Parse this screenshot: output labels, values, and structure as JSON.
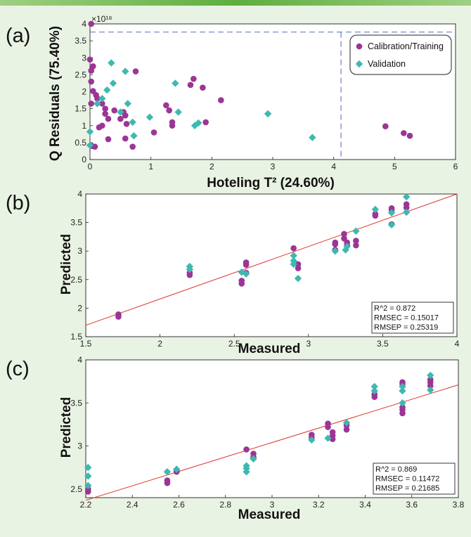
{
  "colors": {
    "calibration": "#9c3595",
    "validation": "#3eb9b0",
    "fit_line": "#e0342b",
    "dashed_limit": "#6e7fbf",
    "background": "#e9f3e4"
  },
  "chart_data": [
    {
      "id": "a",
      "type": "scatter",
      "panel_label": "(a)",
      "title": "",
      "xlabel": "Hoteling T² (24.60%)",
      "ylabel": "Q Residuals (75.40%)",
      "y_scale_label": "×10¹⁸",
      "xlim": [
        0,
        6
      ],
      "ylim": [
        0,
        4
      ],
      "xticks": [
        "0",
        "1",
        "2",
        "3",
        "4",
        "5",
        "6"
      ],
      "yticks": [
        "0",
        "0.5",
        "1",
        "1.5",
        "2",
        "2.5",
        "3",
        "3.5",
        "4"
      ],
      "limits": {
        "t2_limit": 4.12,
        "q_limit": 3.76
      },
      "legend": {
        "placement": "top-right",
        "entries": [
          "Calibration/Training",
          "Validation"
        ]
      },
      "series": [
        {
          "name": "Calibration/Training",
          "marker": "circle",
          "points": [
            [
              0.02,
              4.0
            ],
            [
              0.0,
              2.95
            ],
            [
              0.02,
              2.62
            ],
            [
              0.05,
              2.75
            ],
            [
              0.02,
              2.3
            ],
            [
              0.05,
              2.02
            ],
            [
              0.02,
              1.65
            ],
            [
              0.1,
              1.9
            ],
            [
              0.12,
              1.8
            ],
            [
              0.2,
              1.65
            ],
            [
              0.25,
              1.5
            ],
            [
              0.2,
              1.0
            ],
            [
              0.25,
              1.35
            ],
            [
              0.3,
              1.2
            ],
            [
              0.15,
              0.95
            ],
            [
              0.4,
              1.45
            ],
            [
              0.55,
              1.4
            ],
            [
              0.58,
              1.3
            ],
            [
              0.5,
              1.2
            ],
            [
              0.6,
              1.05
            ],
            [
              0.75,
              2.6
            ],
            [
              0.03,
              0.4
            ],
            [
              0.08,
              0.38
            ],
            [
              0.3,
              0.6
            ],
            [
              0.58,
              0.62
            ],
            [
              0.7,
              0.38
            ],
            [
              1.05,
              0.8
            ],
            [
              1.25,
              1.6
            ],
            [
              1.3,
              1.45
            ],
            [
              1.35,
              1.0
            ],
            [
              1.35,
              1.1
            ],
            [
              1.65,
              2.2
            ],
            [
              1.7,
              2.38
            ],
            [
              1.85,
              2.12
            ],
            [
              1.9,
              1.1
            ],
            [
              2.15,
              1.75
            ],
            [
              4.85,
              0.98
            ],
            [
              5.15,
              0.78
            ],
            [
              5.25,
              0.7
            ]
          ]
        },
        {
          "name": "Validation",
          "marker": "diamond",
          "points": [
            [
              0.0,
              0.82
            ],
            [
              0.0,
              0.42
            ],
            [
              0.12,
              1.65
            ],
            [
              0.2,
              1.8
            ],
            [
              0.28,
              2.05
            ],
            [
              0.35,
              2.85
            ],
            [
              0.38,
              2.25
            ],
            [
              0.5,
              1.4
            ],
            [
              0.58,
              2.6
            ],
            [
              0.62,
              1.65
            ],
            [
              0.7,
              1.1
            ],
            [
              0.72,
              0.7
            ],
            [
              0.98,
              1.25
            ],
            [
              1.4,
              2.25
            ],
            [
              1.45,
              1.4
            ],
            [
              1.72,
              1.0
            ],
            [
              1.78,
              1.08
            ],
            [
              2.92,
              1.35
            ],
            [
              3.65,
              0.65
            ]
          ]
        }
      ]
    },
    {
      "id": "b",
      "type": "scatter",
      "panel_label": "(b)",
      "xlabel": "Measured",
      "ylabel": "Predicted",
      "xlim": [
        1.5,
        4
      ],
      "ylim": [
        1.5,
        4
      ],
      "xticks": [
        "1.5",
        "2",
        "2.5",
        "3",
        "3.5",
        "4"
      ],
      "yticks": [
        "1.5",
        "2",
        "2.5",
        "3",
        "3.5",
        "4"
      ],
      "fit_line": [
        [
          1.5,
          1.7
        ],
        [
          4.0,
          4.0
        ]
      ],
      "stats": [
        "R^2 = 0.872",
        "RMSEC = 0.15017",
        "RMSEP = 0.25319"
      ],
      "series": [
        {
          "name": "Calibration/Training",
          "marker": "circle",
          "points": [
            [
              1.72,
              1.89
            ],
            [
              1.72,
              1.85
            ],
            [
              2.2,
              2.62
            ],
            [
              2.2,
              2.58
            ],
            [
              2.55,
              2.48
            ],
            [
              2.55,
              2.43
            ],
            [
              2.58,
              2.62
            ],
            [
              2.58,
              2.76
            ],
            [
              2.58,
              2.8
            ],
            [
              2.9,
              3.05
            ],
            [
              2.93,
              2.77
            ],
            [
              2.93,
              2.7
            ],
            [
              3.18,
              3.15
            ],
            [
              3.18,
              3.12
            ],
            [
              3.18,
              3.02
            ],
            [
              3.24,
              3.3
            ],
            [
              3.24,
              3.22
            ],
            [
              3.26,
              3.15
            ],
            [
              3.26,
              3.1
            ],
            [
              3.32,
              3.18
            ],
            [
              3.32,
              3.1
            ],
            [
              3.45,
              3.65
            ],
            [
              3.45,
              3.62
            ],
            [
              3.56,
              3.72
            ],
            [
              3.56,
              3.75
            ],
            [
              3.56,
              3.47
            ],
            [
              3.66,
              3.82
            ],
            [
              3.66,
              3.76
            ]
          ]
        },
        {
          "name": "Validation",
          "marker": "diamond",
          "points": [
            [
              2.2,
              2.73
            ],
            [
              2.2,
              2.68
            ],
            [
              2.55,
              2.63
            ],
            [
              2.58,
              2.6
            ],
            [
              2.9,
              2.92
            ],
            [
              2.9,
              2.83
            ],
            [
              2.9,
              2.77
            ],
            [
              2.93,
              2.52
            ],
            [
              3.18,
              3.0
            ],
            [
              3.25,
              3.02
            ],
            [
              3.26,
              3.08
            ],
            [
              3.32,
              3.35
            ],
            [
              3.45,
              3.73
            ],
            [
              3.56,
              3.67
            ],
            [
              3.56,
              3.46
            ],
            [
              3.66,
              3.95
            ],
            [
              3.66,
              3.68
            ]
          ]
        }
      ]
    },
    {
      "id": "c",
      "type": "scatter",
      "panel_label": "(c)",
      "xlabel": "Measured",
      "ylabel": "Predicted",
      "xlim": [
        2.2,
        3.8
      ],
      "ylim": [
        2.4,
        4
      ],
      "xticks": [
        "2.2",
        "2.4",
        "2.6",
        "2.8",
        "3",
        "3.2",
        "3.4",
        "3.6",
        "3.8"
      ],
      "yticks": [
        "2.5",
        "3",
        "3.5",
        "4"
      ],
      "fit_line": [
        [
          2.2,
          2.37
        ],
        [
          3.8,
          3.71
        ]
      ],
      "stats": [
        "R^2 = 0.869",
        "RMSEC = 0.11472",
        "RMSEP = 0.21685"
      ],
      "series": [
        {
          "name": "Calibration/Training",
          "marker": "circle",
          "points": [
            [
              2.21,
              2.5
            ],
            [
              2.21,
              2.47
            ],
            [
              2.55,
              2.6
            ],
            [
              2.55,
              2.57
            ],
            [
              2.59,
              2.72
            ],
            [
              2.59,
              2.7
            ],
            [
              2.89,
              2.96
            ],
            [
              2.92,
              2.91
            ],
            [
              2.92,
              2.87
            ],
            [
              3.17,
              3.13
            ],
            [
              3.17,
              3.1
            ],
            [
              3.24,
              3.26
            ],
            [
              3.24,
              3.22
            ],
            [
              3.26,
              3.16
            ],
            [
              3.26,
              3.12
            ],
            [
              3.26,
              3.08
            ],
            [
              3.32,
              3.24
            ],
            [
              3.32,
              3.19
            ],
            [
              3.44,
              3.6
            ],
            [
              3.44,
              3.57
            ],
            [
              3.56,
              3.74
            ],
            [
              3.56,
              3.72
            ],
            [
              3.56,
              3.45
            ],
            [
              3.56,
              3.42
            ],
            [
              3.56,
              3.38
            ],
            [
              3.68,
              3.77
            ],
            [
              3.68,
              3.74
            ],
            [
              3.68,
              3.7
            ]
          ]
        },
        {
          "name": "Validation",
          "marker": "diamond",
          "points": [
            [
              2.21,
              2.75
            ],
            [
              2.21,
              2.65
            ],
            [
              2.21,
              2.54
            ],
            [
              2.55,
              2.7
            ],
            [
              2.59,
              2.73
            ],
            [
              2.89,
              2.77
            ],
            [
              2.89,
              2.74
            ],
            [
              2.89,
              2.7
            ],
            [
              2.92,
              2.85
            ],
            [
              3.17,
              3.07
            ],
            [
              3.24,
              3.09
            ],
            [
              3.32,
              3.27
            ],
            [
              3.44,
              3.69
            ],
            [
              3.44,
              3.64
            ],
            [
              3.56,
              3.69
            ],
            [
              3.56,
              3.64
            ],
            [
              3.56,
              3.5
            ],
            [
              3.68,
              3.82
            ],
            [
              3.68,
              3.65
            ]
          ]
        }
      ]
    }
  ]
}
